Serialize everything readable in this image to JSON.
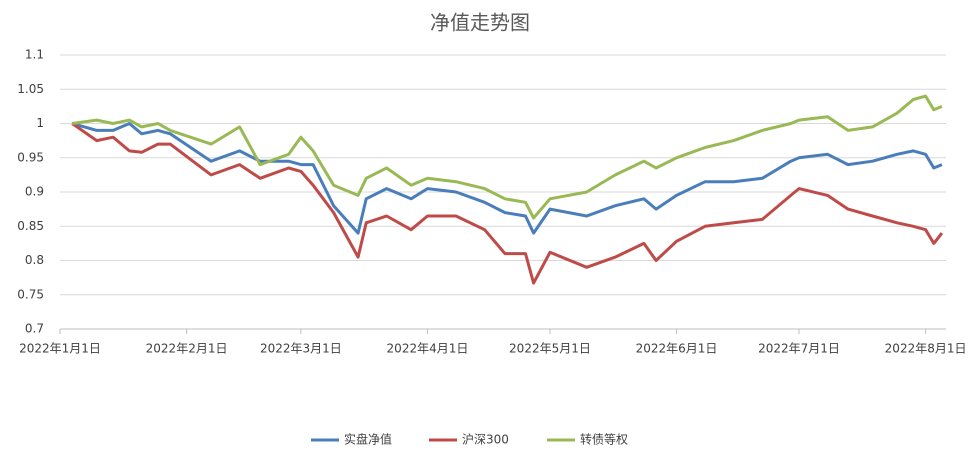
{
  "chart_data": {
    "type": "line",
    "title": "净值走势图",
    "x": [
      "2022-01-04",
      "2022-01-10",
      "2022-01-14",
      "2022-01-18",
      "2022-01-21",
      "2022-01-25",
      "2022-01-28",
      "2022-02-07",
      "2022-02-14",
      "2022-02-19",
      "2022-02-26",
      "2022-03-01",
      "2022-03-04",
      "2022-03-09",
      "2022-03-15",
      "2022-03-17",
      "2022-03-22",
      "2022-03-28",
      "2022-04-01",
      "2022-04-08",
      "2022-04-15",
      "2022-04-20",
      "2022-04-25",
      "2022-04-27",
      "2022-05-01",
      "2022-05-10",
      "2022-05-17",
      "2022-05-24",
      "2022-05-27",
      "2022-06-01",
      "2022-06-08",
      "2022-06-15",
      "2022-06-22",
      "2022-06-29",
      "2022-07-01",
      "2022-07-08",
      "2022-07-13",
      "2022-07-19",
      "2022-07-25",
      "2022-07-29",
      "2022-08-01",
      "2022-08-03",
      "2022-08-05"
    ],
    "series": [
      {
        "name": "实盘净值",
        "color": "#4a7ebb",
        "values": [
          1.0,
          0.99,
          0.99,
          1.0,
          0.985,
          0.99,
          0.985,
          0.945,
          0.96,
          0.945,
          0.945,
          0.94,
          0.94,
          0.88,
          0.84,
          0.89,
          0.905,
          0.89,
          0.905,
          0.9,
          0.885,
          0.87,
          0.865,
          0.84,
          0.875,
          0.865,
          0.88,
          0.89,
          0.875,
          0.895,
          0.915,
          0.915,
          0.92,
          0.945,
          0.95,
          0.955,
          0.94,
          0.945,
          0.955,
          0.96,
          0.955,
          0.935,
          0.94
        ]
      },
      {
        "name": "沪深300",
        "color": "#be4b48",
        "values": [
          1.0,
          0.975,
          0.98,
          0.96,
          0.958,
          0.97,
          0.97,
          0.925,
          0.94,
          0.92,
          0.935,
          0.93,
          0.91,
          0.87,
          0.805,
          0.855,
          0.865,
          0.845,
          0.865,
          0.865,
          0.845,
          0.81,
          0.81,
          0.767,
          0.812,
          0.79,
          0.805,
          0.825,
          0.8,
          0.828,
          0.85,
          0.855,
          0.86,
          0.895,
          0.905,
          0.895,
          0.875,
          0.865,
          0.855,
          0.85,
          0.845,
          0.825,
          0.84
        ]
      },
      {
        "name": "转债等权",
        "color": "#98b954",
        "values": [
          1.0,
          1.005,
          1.0,
          1.005,
          0.995,
          1.0,
          0.99,
          0.97,
          0.995,
          0.94,
          0.955,
          0.98,
          0.96,
          0.91,
          0.895,
          0.92,
          0.935,
          0.91,
          0.92,
          0.915,
          0.905,
          0.89,
          0.885,
          0.862,
          0.89,
          0.9,
          0.925,
          0.945,
          0.935,
          0.95,
          0.965,
          0.975,
          0.99,
          1.0,
          1.005,
          1.01,
          0.99,
          0.995,
          1.015,
          1.035,
          1.04,
          1.02,
          1.025
        ]
      }
    ],
    "xlim": [
      "2022-01-01",
      "2022-08-06"
    ],
    "xticks": [
      {
        "value": "2022-01-01",
        "label": "2022年1月1日"
      },
      {
        "value": "2022-02-01",
        "label": "2022年2月1日"
      },
      {
        "value": "2022-03-01",
        "label": "2022年3月1日"
      },
      {
        "value": "2022-04-01",
        "label": "2022年4月1日"
      },
      {
        "value": "2022-05-01",
        "label": "2022年5月1日"
      },
      {
        "value": "2022-06-01",
        "label": "2022年6月1日"
      },
      {
        "value": "2022-07-01",
        "label": "2022年7月1日"
      },
      {
        "value": "2022-08-01",
        "label": "2022年8月1日"
      }
    ],
    "ylim": [
      0.7,
      1.1
    ],
    "yticks": [
      0.7,
      0.75,
      0.8,
      0.85,
      0.9,
      0.95,
      1,
      1.05,
      1.1
    ],
    "grid": true,
    "legend": "bottom"
  }
}
